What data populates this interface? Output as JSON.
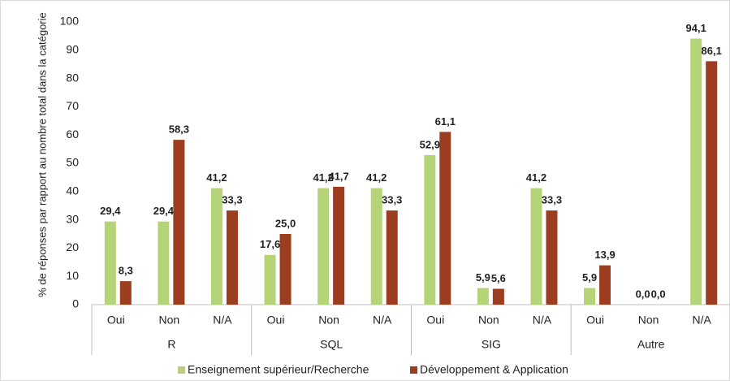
{
  "chart_data": {
    "type": "bar",
    "y_label": "% de réponses par rapport au nombre total dans la catégorie",
    "groups": [
      "R",
      "SQL",
      "SIG",
      "Autre"
    ],
    "categories": [
      "Oui",
      "Non",
      "N/A",
      "Oui",
      "Non",
      "N/A",
      "Oui",
      "Non",
      "N/A",
      "Oui",
      "Non",
      "N/A"
    ],
    "series": [
      {
        "name": "Enseignement supérieur/Recherche",
        "color": "#b5d377",
        "values": [
          29.4,
          29.4,
          41.2,
          17.6,
          41.2,
          41.2,
          52.9,
          5.9,
          41.2,
          5.9,
          0.0,
          94.1
        ],
        "value_labels": [
          "29,4",
          "29,4",
          "41,2",
          "17,6",
          "41,2",
          "41,2",
          "52,9",
          "5,9",
          "41,2",
          "5,9",
          "0,0",
          "94,1"
        ]
      },
      {
        "name": "Développement & Application",
        "color": "#9c3d1f",
        "values": [
          8.3,
          58.3,
          33.3,
          25.0,
          41.7,
          33.3,
          61.1,
          5.6,
          33.3,
          13.9,
          0.0,
          86.1
        ],
        "value_labels": [
          "8,3",
          "58,3",
          "33,3",
          "25,0",
          "41,7",
          "33,3",
          "61,1",
          "5,6",
          "33,3",
          "13,9",
          "0,0",
          "86,1"
        ]
      }
    ],
    "ylim": [
      0,
      100
    ],
    "yticks": [
      0,
      10,
      20,
      30,
      40,
      50,
      60,
      70,
      80,
      90,
      100
    ],
    "grid": false
  }
}
